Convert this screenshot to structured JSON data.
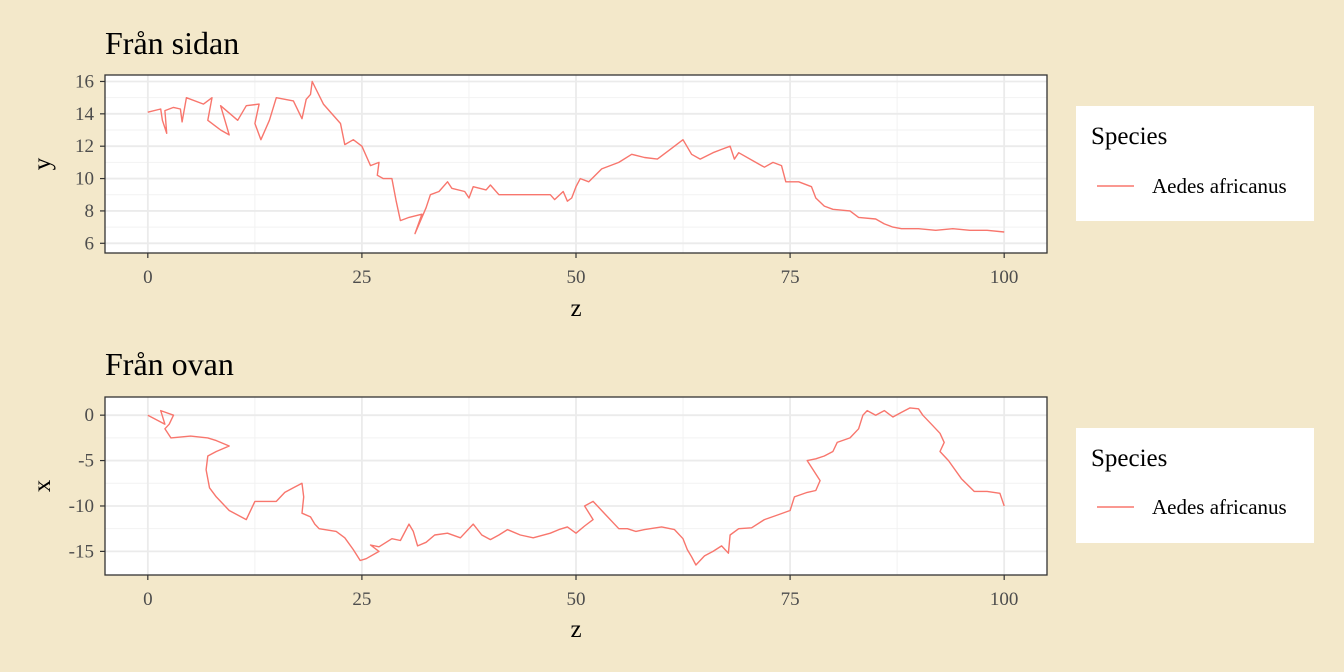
{
  "chart_data": [
    {
      "type": "line",
      "title": "Från sidan",
      "xlabel": "z",
      "ylabel": "y",
      "xlim": [
        -5,
        105
      ],
      "ylim": [
        5.4,
        16.4
      ],
      "xticks": [
        0,
        25,
        50,
        75,
        100
      ],
      "xtick_labels": [
        "0",
        "25",
        "50",
        "75",
        "100"
      ],
      "yticks": [
        6,
        8,
        10,
        12,
        14,
        16
      ],
      "ytick_labels": [
        "6",
        "8",
        "10",
        "12",
        "14",
        "16"
      ],
      "grid": true,
      "legend": {
        "title": "Species",
        "position": "right"
      },
      "series": [
        {
          "name": "Aedes africanus",
          "color": "#f8766d",
          "points": [
            [
              0,
              14.1
            ],
            [
              1.5,
              14.3
            ],
            [
              1.7,
              13.6
            ],
            [
              2.2,
              12.8
            ],
            [
              2,
              14.2
            ],
            [
              3,
              14.4
            ],
            [
              3.8,
              14.3
            ],
            [
              4,
              13.5
            ],
            [
              4.5,
              15
            ],
            [
              6.5,
              14.6
            ],
            [
              7.5,
              15
            ],
            [
              7,
              13.6
            ],
            [
              8.5,
              13
            ],
            [
              9.5,
              12.7
            ],
            [
              8.5,
              14.5
            ],
            [
              10.5,
              13.6
            ],
            [
              11.5,
              14.5
            ],
            [
              13,
              14.6
            ],
            [
              12.5,
              13.4
            ],
            [
              13.2,
              12.4
            ],
            [
              14.2,
              13.6
            ],
            [
              15,
              15
            ],
            [
              17,
              14.8
            ],
            [
              18,
              13.7
            ],
            [
              18.5,
              14.9
            ],
            [
              19,
              15.2
            ],
            [
              19.2,
              16
            ],
            [
              20.5,
              14.6
            ],
            [
              22.5,
              13.4
            ],
            [
              23,
              12.1
            ],
            [
              24,
              12.4
            ],
            [
              25,
              12
            ],
            [
              26,
              10.8
            ],
            [
              27,
              11
            ],
            [
              26.8,
              10.2
            ],
            [
              27.5,
              10
            ],
            [
              28.5,
              10
            ],
            [
              29,
              8.6
            ],
            [
              29.5,
              7.4
            ],
            [
              30.5,
              7.6
            ],
            [
              32,
              7.8
            ],
            [
              31.2,
              6.6
            ],
            [
              32.5,
              8.2
            ],
            [
              33,
              9
            ],
            [
              34,
              9.2
            ],
            [
              35,
              9.8
            ],
            [
              35.5,
              9.4
            ],
            [
              37,
              9.2
            ],
            [
              37.5,
              8.8
            ],
            [
              38,
              9.5
            ],
            [
              39.5,
              9.3
            ],
            [
              40,
              9.6
            ],
            [
              41,
              9
            ],
            [
              42,
              9
            ],
            [
              44,
              9
            ],
            [
              47,
              9
            ],
            [
              47.5,
              8.7
            ],
            [
              48.5,
              9.2
            ],
            [
              49,
              8.6
            ],
            [
              49.5,
              8.8
            ],
            [
              50,
              9.5
            ],
            [
              50.5,
              10
            ],
            [
              51.5,
              9.8
            ],
            [
              53,
              10.6
            ],
            [
              55,
              11
            ],
            [
              56.5,
              11.5
            ],
            [
              58,
              11.3
            ],
            [
              59.5,
              11.2
            ],
            [
              61,
              11.8
            ],
            [
              62.5,
              12.4
            ],
            [
              63.5,
              11.5
            ],
            [
              64.5,
              11.2
            ],
            [
              66,
              11.6
            ],
            [
              67,
              11.8
            ],
            [
              68,
              12
            ],
            [
              68.5,
              11.2
            ],
            [
              69,
              11.6
            ],
            [
              71,
              11
            ],
            [
              72,
              10.7
            ],
            [
              73,
              11
            ],
            [
              74,
              10.8
            ],
            [
              74.5,
              9.8
            ],
            [
              76,
              9.8
            ],
            [
              77.5,
              9.5
            ],
            [
              78,
              8.8
            ],
            [
              79,
              8.3
            ],
            [
              80,
              8.1
            ],
            [
              82,
              8
            ],
            [
              83,
              7.6
            ],
            [
              85,
              7.5
            ],
            [
              86,
              7.2
            ],
            [
              87,
              7
            ],
            [
              88,
              6.9
            ],
            [
              90,
              6.9
            ],
            [
              92,
              6.8
            ],
            [
              94,
              6.9
            ],
            [
              96,
              6.8
            ],
            [
              98,
              6.8
            ],
            [
              100,
              6.7
            ]
          ]
        }
      ]
    },
    {
      "type": "line",
      "title": "Från ovan",
      "xlabel": "z",
      "ylabel": "x",
      "xlim": [
        -5,
        105
      ],
      "ylim": [
        -17.6,
        2
      ],
      "xticks": [
        0,
        25,
        50,
        75,
        100
      ],
      "xtick_labels": [
        "0",
        "25",
        "50",
        "75",
        "100"
      ],
      "yticks": [
        0,
        -5,
        -10,
        -15
      ],
      "ytick_labels": [
        "0",
        "-5",
        "-10",
        "-15"
      ],
      "grid": true,
      "legend": {
        "title": "Species",
        "position": "right"
      },
      "series": [
        {
          "name": "Aedes africanus",
          "color": "#f8766d",
          "points": [
            [
              0,
              0
            ],
            [
              1,
              -0.5
            ],
            [
              2,
              -1
            ],
            [
              1.5,
              0.5
            ],
            [
              3,
              0
            ],
            [
              2.5,
              -1
            ],
            [
              2,
              -1.5
            ],
            [
              2.7,
              -2.5
            ],
            [
              5,
              -2.3
            ],
            [
              7,
              -2.5
            ],
            [
              8,
              -2.8
            ],
            [
              9.5,
              -3.4
            ],
            [
              8,
              -4
            ],
            [
              7,
              -4.5
            ],
            [
              6.8,
              -6
            ],
            [
              7.2,
              -8
            ],
            [
              8,
              -9
            ],
            [
              9.5,
              -10.5
            ],
            [
              11.5,
              -11.5
            ],
            [
              12.5,
              -9.5
            ],
            [
              15,
              -9.5
            ],
            [
              16,
              -8.5
            ],
            [
              17,
              -8
            ],
            [
              18,
              -7.5
            ],
            [
              18.2,
              -9
            ],
            [
              18,
              -10.8
            ],
            [
              19,
              -11.2
            ],
            [
              19.5,
              -12
            ],
            [
              20,
              -12.5
            ],
            [
              22,
              -12.8
            ],
            [
              23,
              -13.5
            ],
            [
              24,
              -14.8
            ],
            [
              24.8,
              -16
            ],
            [
              25.5,
              -15.8
            ],
            [
              27,
              -15
            ],
            [
              26,
              -14.3
            ],
            [
              27,
              -14.5
            ],
            [
              28.5,
              -13.6
            ],
            [
              29.5,
              -13.8
            ],
            [
              30.5,
              -12
            ],
            [
              31,
              -12.8
            ],
            [
              31.5,
              -14.4
            ],
            [
              32.5,
              -14
            ],
            [
              33.5,
              -13.2
            ],
            [
              35,
              -13
            ],
            [
              36.5,
              -13.5
            ],
            [
              37,
              -13
            ],
            [
              38,
              -12
            ],
            [
              39,
              -13.2
            ],
            [
              40,
              -13.7
            ],
            [
              41,
              -13.2
            ],
            [
              42,
              -12.6
            ],
            [
              43.5,
              -13.2
            ],
            [
              45,
              -13.5
            ],
            [
              47,
              -13
            ],
            [
              48,
              -12.6
            ],
            [
              49,
              -12.3
            ],
            [
              50,
              -13
            ],
            [
              51,
              -12.2
            ],
            [
              52,
              -11.5
            ],
            [
              51,
              -10
            ],
            [
              52,
              -9.5
            ],
            [
              53.5,
              -11
            ],
            [
              55,
              -12.5
            ],
            [
              56,
              -12.5
            ],
            [
              57,
              -12.8
            ],
            [
              58,
              -12.6
            ],
            [
              60,
              -12.3
            ],
            [
              61.5,
              -12.6
            ],
            [
              62.5,
              -13.6
            ],
            [
              63,
              -14.8
            ],
            [
              63.5,
              -15.6
            ],
            [
              64,
              -16.5
            ],
            [
              65,
              -15.5
            ],
            [
              66,
              -15
            ],
            [
              67,
              -14.4
            ],
            [
              67.8,
              -15.2
            ],
            [
              68,
              -13.2
            ],
            [
              69,
              -12.5
            ],
            [
              70.5,
              -12.4
            ],
            [
              72,
              -11.5
            ],
            [
              73.5,
              -11
            ],
            [
              75,
              -10.5
            ],
            [
              75.5,
              -9
            ],
            [
              77,
              -8.5
            ],
            [
              78,
              -8.3
            ],
            [
              78.5,
              -7.2
            ],
            [
              77,
              -5
            ],
            [
              78,
              -4.8
            ],
            [
              79,
              -4.5
            ],
            [
              80,
              -4
            ],
            [
              80.5,
              -3
            ],
            [
              82,
              -2.5
            ],
            [
              83,
              -1.5
            ],
            [
              83.5,
              0
            ],
            [
              84,
              0.5
            ],
            [
              85,
              0
            ],
            [
              86,
              0.5
            ],
            [
              87,
              -0.2
            ],
            [
              88,
              0.3
            ],
            [
              89,
              0.8
            ],
            [
              90,
              0.7
            ],
            [
              90.5,
              0
            ],
            [
              91.5,
              -1
            ],
            [
              92.5,
              -2
            ],
            [
              93,
              -3
            ],
            [
              92.5,
              -4
            ],
            [
              93.5,
              -5
            ],
            [
              95,
              -7
            ],
            [
              96.5,
              -8.4
            ],
            [
              98,
              -8.4
            ],
            [
              99.5,
              -8.6
            ],
            [
              100,
              -10
            ]
          ]
        }
      ]
    }
  ]
}
